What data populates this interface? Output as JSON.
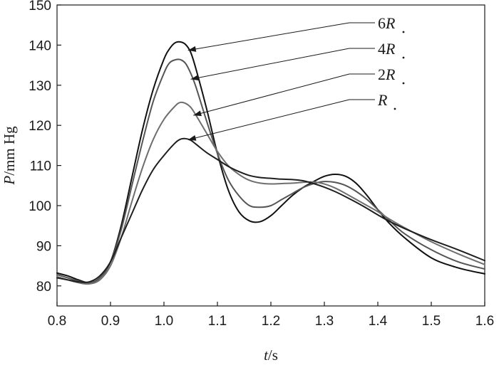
{
  "chart_data": {
    "type": "line",
    "title": "",
    "xlabel": {
      "var": "t",
      "unit": "/s"
    },
    "ylabel": {
      "var": "P",
      "unit": "/mm Hg"
    },
    "xlim": [
      0.8,
      1.6
    ],
    "ylim": [
      75,
      150
    ],
    "xticks": [
      0.8,
      0.9,
      1.0,
      1.1,
      1.2,
      1.3,
      1.4,
      1.5,
      1.6
    ],
    "xtick_labels": [
      "0.8",
      "0.9",
      "1.0",
      "1.1",
      "1.2",
      "1.3",
      "1.4",
      "1.5",
      "1.6"
    ],
    "yticks": [
      80,
      90,
      100,
      110,
      120,
      130,
      140,
      150
    ],
    "ytick_labels": [
      "80",
      "90",
      "100",
      "110",
      "120",
      "130",
      "140",
      "150"
    ],
    "grid": false,
    "legend": "annotation arrows, top-right",
    "series": [
      {
        "name": "6R",
        "label_prefix": "6",
        "label_var": "R",
        "color": "#111111",
        "annotation_point": [
          1.045,
          138.7
        ],
        "x": [
          0.8,
          0.82,
          0.84,
          0.86,
          0.88,
          0.9,
          0.92,
          0.94,
          0.96,
          0.98,
          1.0,
          1.01,
          1.02,
          1.03,
          1.04,
          1.05,
          1.06,
          1.08,
          1.1,
          1.12,
          1.14,
          1.16,
          1.18,
          1.2,
          1.22,
          1.24,
          1.26,
          1.28,
          1.3,
          1.32,
          1.34,
          1.36,
          1.38,
          1.4,
          1.42,
          1.45,
          1.5,
          1.55,
          1.6
        ],
        "y": [
          83.2,
          82.5,
          81.5,
          80.8,
          82.0,
          86.0,
          95.0,
          107.0,
          119.0,
          129.0,
          136.5,
          139.0,
          140.5,
          140.8,
          140.2,
          138.2,
          134.0,
          124.0,
          113.0,
          104.0,
          98.5,
          96.2,
          96.0,
          97.5,
          100.0,
          102.5,
          104.5,
          106.0,
          107.3,
          107.8,
          107.3,
          105.5,
          102.5,
          99.0,
          95.8,
          92.0,
          87.0,
          84.5,
          83.0
        ]
      },
      {
        "name": "4R",
        "label_prefix": "4",
        "label_var": "R",
        "color": "#555555",
        "annotation_point": [
          1.05,
          131.5
        ],
        "x": [
          0.8,
          0.82,
          0.84,
          0.86,
          0.88,
          0.9,
          0.92,
          0.94,
          0.96,
          0.98,
          1.0,
          1.01,
          1.02,
          1.03,
          1.04,
          1.05,
          1.06,
          1.08,
          1.1,
          1.12,
          1.14,
          1.16,
          1.18,
          1.2,
          1.22,
          1.24,
          1.26,
          1.28,
          1.3,
          1.32,
          1.34,
          1.36,
          1.38,
          1.4,
          1.42,
          1.45,
          1.5,
          1.55,
          1.6
        ],
        "y": [
          82.8,
          82.0,
          81.2,
          80.8,
          82.0,
          86.0,
          94.0,
          105.0,
          116.0,
          126.0,
          133.0,
          135.5,
          136.3,
          136.4,
          135.5,
          133.0,
          129.5,
          121.0,
          113.0,
          106.5,
          102.5,
          100.0,
          99.6,
          100.0,
          101.5,
          103.0,
          104.5,
          105.5,
          106.0,
          105.8,
          105.0,
          103.5,
          101.5,
          99.0,
          96.5,
          93.0,
          89.0,
          86.0,
          84.2
        ]
      },
      {
        "name": "2R",
        "label_prefix": "2",
        "label_var": "R",
        "color": "#6e6e6e",
        "annotation_point": [
          1.055,
          122.5
        ],
        "x": [
          0.8,
          0.82,
          0.84,
          0.86,
          0.88,
          0.9,
          0.92,
          0.94,
          0.96,
          0.98,
          1.0,
          1.02,
          1.03,
          1.04,
          1.05,
          1.06,
          1.08,
          1.1,
          1.12,
          1.14,
          1.16,
          1.18,
          1.2,
          1.22,
          1.24,
          1.26,
          1.28,
          1.3,
          1.32,
          1.34,
          1.36,
          1.38,
          1.4,
          1.42,
          1.45,
          1.5,
          1.55,
          1.6
        ],
        "y": [
          82.3,
          81.5,
          80.8,
          80.5,
          81.5,
          85.0,
          92.0,
          101.0,
          109.5,
          116.5,
          121.5,
          124.7,
          125.7,
          125.5,
          124.5,
          122.5,
          118.0,
          113.5,
          110.0,
          107.8,
          106.3,
          105.6,
          105.4,
          105.5,
          105.6,
          105.8,
          105.9,
          105.4,
          104.4,
          103.0,
          101.5,
          100.0,
          98.5,
          96.8,
          94.5,
          91.0,
          88.0,
          85.3
        ]
      },
      {
        "name": "R",
        "label_prefix": "",
        "label_var": "R",
        "color": "#1e1e1e",
        "annotation_point": [
          1.045,
          116.4
        ],
        "x": [
          0.8,
          0.82,
          0.84,
          0.86,
          0.88,
          0.9,
          0.92,
          0.94,
          0.96,
          0.98,
          1.0,
          1.02,
          1.03,
          1.04,
          1.05,
          1.06,
          1.08,
          1.1,
          1.12,
          1.14,
          1.16,
          1.18,
          1.2,
          1.22,
          1.24,
          1.26,
          1.28,
          1.3,
          1.32,
          1.34,
          1.36,
          1.38,
          1.4,
          1.42,
          1.45,
          1.5,
          1.55,
          1.6
        ],
        "y": [
          82.0,
          81.5,
          81.0,
          81.0,
          82.5,
          86.0,
          92.0,
          98.0,
          104.0,
          109.0,
          112.5,
          115.5,
          116.5,
          116.7,
          116.3,
          115.3,
          113.2,
          111.5,
          109.8,
          108.5,
          107.5,
          107.0,
          106.8,
          106.6,
          106.5,
          106.2,
          105.5,
          104.6,
          103.5,
          102.2,
          100.8,
          99.3,
          97.7,
          96.2,
          94.3,
          91.5,
          89.0,
          86.3
        ]
      }
    ]
  }
}
